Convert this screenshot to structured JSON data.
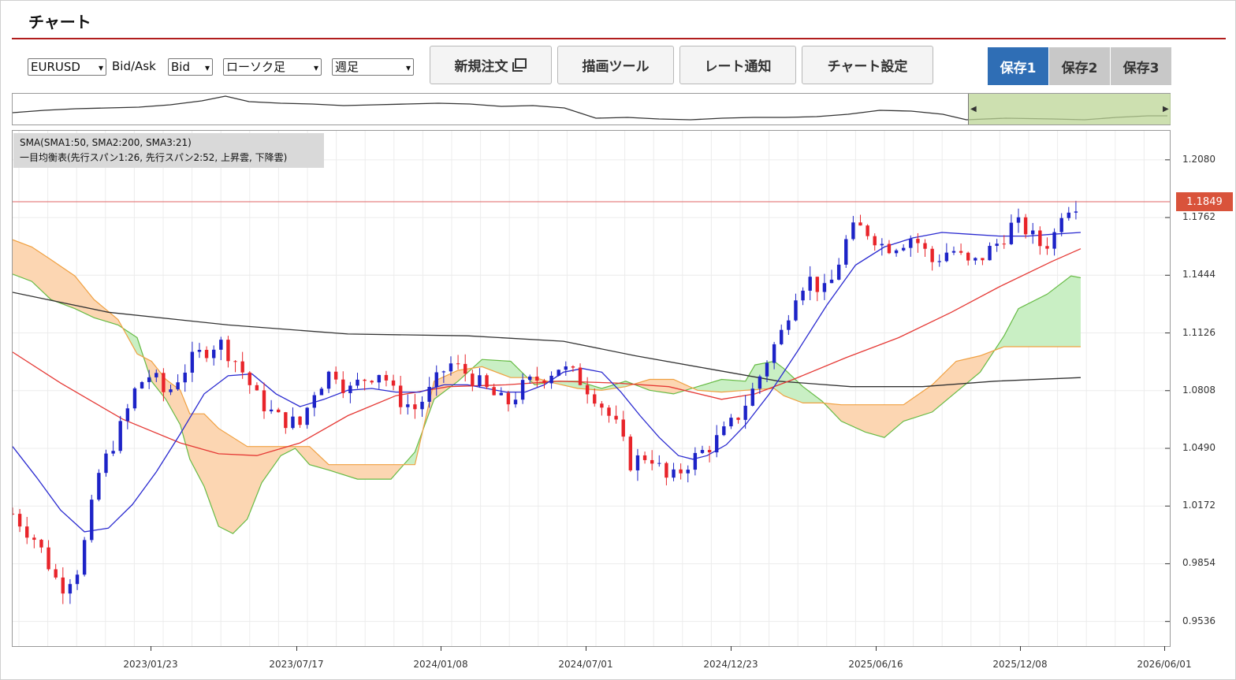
{
  "title": "チャート",
  "toolbar": {
    "pair": "EURUSD",
    "bidask_label": "Bid/Ask",
    "bidask_value": "Bid",
    "chart_type": "ローソク足",
    "period": "週足",
    "new_order_label": "新規注文",
    "draw_tool_label": "描画ツール",
    "rate_alert_label": "レート通知",
    "chart_settings_label": "チャート設定",
    "save_tabs": [
      "保存1",
      "保存2",
      "保存3"
    ],
    "save_active": 0
  },
  "legend": {
    "line1": "SMA(SMA1:50, SMA2:200, SMA3:21)",
    "line2": "一目均衡表(先行スパン1:26, 先行スパン2:52, 上昇雲, 下降雲)"
  },
  "colors": {
    "up_candle": "#1d23c7",
    "down_candle": "#e8242a",
    "sma1": "#e53935",
    "sma2": "#333333",
    "sma3": "#2a2ad0",
    "cloud_up": "#c9efc4",
    "cloud_down": "#fcd6b2",
    "span1": "#66bb44",
    "span2": "#f0a040",
    "active_tab": "#2f6eb5",
    "current_price": "#d9533b"
  },
  "chart_data": {
    "type": "candlestick",
    "instrument": "EURUSD",
    "timeframe": "週足",
    "current_price": "1.1849",
    "y_ticks": [
      "1.2080",
      "1.1762",
      "1.1444",
      "1.1126",
      "1.0808",
      "1.0490",
      "1.0172",
      "0.9854",
      "0.9536"
    ],
    "x_ticks": [
      "2023/01/23",
      "2023/07/17",
      "2024/01/08",
      "2024/07/01",
      "2024/12/23",
      "2025/06/16",
      "2025/12/08",
      "2026/06/01"
    ],
    "ylim": [
      0.94,
      1.224
    ],
    "close_path": [
      [
        0,
        1.013
      ],
      [
        10,
        0.998
      ],
      [
        20,
        0.972
      ],
      [
        28,
        0.984
      ],
      [
        36,
        1.035
      ],
      [
        46,
        1.063
      ],
      [
        52,
        1.084
      ],
      [
        58,
        1.09
      ],
      [
        64,
        1.078
      ],
      [
        70,
        1.09
      ],
      [
        76,
        1.099
      ],
      [
        86,
        1.108
      ],
      [
        94,
        1.096
      ],
      [
        102,
        1.077
      ],
      [
        110,
        1.066
      ],
      [
        120,
        1.062
      ],
      [
        126,
        1.081
      ],
      [
        134,
        1.093
      ],
      [
        140,
        1.08
      ],
      [
        146,
        1.087
      ],
      [
        154,
        1.092
      ],
      [
        160,
        1.077
      ],
      [
        168,
        1.071
      ],
      [
        174,
        1.08
      ],
      [
        182,
        1.096
      ],
      [
        190,
        1.09
      ],
      [
        198,
        1.081
      ],
      [
        206,
        1.073
      ],
      [
        214,
        1.084
      ],
      [
        222,
        1.089
      ],
      [
        228,
        1.094
      ],
      [
        236,
        1.088
      ],
      [
        244,
        1.077
      ],
      [
        252,
        1.061
      ],
      [
        258,
        1.041
      ],
      [
        266,
        1.046
      ],
      [
        274,
        1.03
      ],
      [
        282,
        1.041
      ],
      [
        288,
        1.047
      ],
      [
        296,
        1.056
      ],
      [
        302,
        1.065
      ],
      [
        310,
        1.083
      ],
      [
        316,
        1.101
      ],
      [
        322,
        1.115
      ],
      [
        326,
        1.134
      ],
      [
        332,
        1.143
      ],
      [
        340,
        1.134
      ],
      [
        348,
        1.163
      ],
      [
        352,
        1.171
      ],
      [
        358,
        1.168
      ],
      [
        364,
        1.16
      ],
      [
        370,
        1.162
      ],
      [
        376,
        1.166
      ],
      [
        384,
        1.152
      ],
      [
        392,
        1.159
      ],
      [
        400,
        1.149
      ],
      [
        406,
        1.156
      ],
      [
        412,
        1.163
      ],
      [
        418,
        1.173
      ],
      [
        424,
        1.169
      ],
      [
        428,
        1.161
      ],
      [
        434,
        1.163
      ],
      [
        438,
        1.18
      ],
      [
        442,
        1.184
      ],
      [
        446,
        1.185
      ]
    ],
    "sma1_points": [
      [
        0,
        1.102
      ],
      [
        20,
        1.085
      ],
      [
        46,
        1.065
      ],
      [
        70,
        1.052
      ],
      [
        86,
        1.046
      ],
      [
        102,
        1.045
      ],
      [
        120,
        1.052
      ],
      [
        140,
        1.067
      ],
      [
        160,
        1.078
      ],
      [
        182,
        1.083
      ],
      [
        206,
        1.084
      ],
      [
        228,
        1.086
      ],
      [
        252,
        1.085
      ],
      [
        274,
        1.083
      ],
      [
        296,
        1.076
      ],
      [
        310,
        1.079
      ],
      [
        326,
        1.087
      ],
      [
        348,
        1.099
      ],
      [
        370,
        1.11
      ],
      [
        392,
        1.124
      ],
      [
        412,
        1.138
      ],
      [
        434,
        1.152
      ],
      [
        446,
        1.159
      ]
    ],
    "sma2_points": [
      [
        0,
        1.135
      ],
      [
        40,
        1.124
      ],
      [
        90,
        1.117
      ],
      [
        140,
        1.112
      ],
      [
        190,
        1.111
      ],
      [
        230,
        1.108
      ],
      [
        260,
        1.1
      ],
      [
        290,
        1.093
      ],
      [
        320,
        1.086
      ],
      [
        350,
        1.083
      ],
      [
        380,
        1.083
      ],
      [
        410,
        1.086
      ],
      [
        446,
        1.088
      ]
    ],
    "sma3_points": [
      [
        0,
        1.05
      ],
      [
        10,
        1.033
      ],
      [
        20,
        1.015
      ],
      [
        30,
        1.003
      ],
      [
        40,
        1.005
      ],
      [
        50,
        1.018
      ],
      [
        60,
        1.036
      ],
      [
        70,
        1.057
      ],
      [
        80,
        1.079
      ],
      [
        90,
        1.089
      ],
      [
        100,
        1.09
      ],
      [
        110,
        1.079
      ],
      [
        120,
        1.072
      ],
      [
        130,
        1.076
      ],
      [
        140,
        1.081
      ],
      [
        150,
        1.082
      ],
      [
        160,
        1.08
      ],
      [
        170,
        1.08
      ],
      [
        180,
        1.084
      ],
      [
        190,
        1.084
      ],
      [
        198,
        1.082
      ],
      [
        206,
        1.08
      ],
      [
        214,
        1.08
      ],
      [
        222,
        1.084
      ],
      [
        230,
        1.091
      ],
      [
        238,
        1.093
      ],
      [
        246,
        1.091
      ],
      [
        254,
        1.08
      ],
      [
        262,
        1.067
      ],
      [
        270,
        1.055
      ],
      [
        278,
        1.045
      ],
      [
        284,
        1.043
      ],
      [
        290,
        1.045
      ],
      [
        298,
        1.051
      ],
      [
        306,
        1.062
      ],
      [
        316,
        1.079
      ],
      [
        328,
        1.103
      ],
      [
        340,
        1.128
      ],
      [
        352,
        1.15
      ],
      [
        364,
        1.16
      ],
      [
        376,
        1.165
      ],
      [
        388,
        1.168
      ],
      [
        400,
        1.167
      ],
      [
        412,
        1.166
      ],
      [
        424,
        1.166
      ],
      [
        434,
        1.167
      ],
      [
        446,
        1.168
      ]
    ],
    "span1_points": [
      [
        0,
        1.145
      ],
      [
        8,
        1.141
      ],
      [
        16,
        1.131
      ],
      [
        26,
        1.126
      ],
      [
        34,
        1.121
      ],
      [
        44,
        1.117
      ],
      [
        52,
        1.11
      ],
      [
        58,
        1.086
      ],
      [
        64,
        1.076
      ],
      [
        70,
        1.062
      ],
      [
        74,
        1.043
      ],
      [
        80,
        1.028
      ],
      [
        86,
        1.006
      ],
      [
        92,
        1.002
      ],
      [
        98,
        1.01
      ],
      [
        104,
        1.03
      ],
      [
        112,
        1.045
      ],
      [
        118,
        1.049
      ],
      [
        124,
        1.04
      ],
      [
        132,
        1.037
      ],
      [
        144,
        1.032
      ],
      [
        158,
        1.032
      ],
      [
        168,
        1.047
      ],
      [
        176,
        1.076
      ],
      [
        186,
        1.086
      ],
      [
        196,
        1.098
      ],
      [
        208,
        1.097
      ],
      [
        218,
        1.084
      ],
      [
        226,
        1.086
      ],
      [
        236,
        1.086
      ],
      [
        246,
        1.082
      ],
      [
        256,
        1.086
      ],
      [
        266,
        1.081
      ],
      [
        276,
        1.079
      ],
      [
        286,
        1.083
      ],
      [
        296,
        1.087
      ],
      [
        306,
        1.086
      ],
      [
        310,
        1.095
      ],
      [
        318,
        1.097
      ],
      [
        322,
        1.093
      ],
      [
        330,
        1.083
      ],
      [
        338,
        1.075
      ],
      [
        346,
        1.064
      ],
      [
        356,
        1.058
      ],
      [
        364,
        1.055
      ],
      [
        372,
        1.064
      ],
      [
        384,
        1.069
      ],
      [
        394,
        1.08
      ],
      [
        404,
        1.091
      ],
      [
        414,
        1.111
      ],
      [
        420,
        1.126
      ],
      [
        432,
        1.134
      ],
      [
        442,
        1.144
      ],
      [
        446,
        1.143
      ]
    ],
    "span2_points": [
      [
        0,
        1.164
      ],
      [
        8,
        1.16
      ],
      [
        16,
        1.153
      ],
      [
        26,
        1.144
      ],
      [
        34,
        1.131
      ],
      [
        44,
        1.12
      ],
      [
        52,
        1.101
      ],
      [
        58,
        1.097
      ],
      [
        64,
        1.087
      ],
      [
        70,
        1.081
      ],
      [
        74,
        1.068
      ],
      [
        80,
        1.068
      ],
      [
        86,
        1.06
      ],
      [
        98,
        1.05
      ],
      [
        104,
        1.05
      ],
      [
        112,
        1.05
      ],
      [
        118,
        1.05
      ],
      [
        124,
        1.05
      ],
      [
        132,
        1.04
      ],
      [
        144,
        1.04
      ],
      [
        158,
        1.04
      ],
      [
        168,
        1.04
      ],
      [
        176,
        1.086
      ],
      [
        186,
        1.092
      ],
      [
        196,
        1.094
      ],
      [
        208,
        1.088
      ],
      [
        218,
        1.088
      ],
      [
        226,
        1.085
      ],
      [
        236,
        1.082
      ],
      [
        246,
        1.081
      ],
      [
        256,
        1.083
      ],
      [
        266,
        1.087
      ],
      [
        276,
        1.087
      ],
      [
        286,
        1.081
      ],
      [
        296,
        1.08
      ],
      [
        306,
        1.081
      ],
      [
        318,
        1.082
      ],
      [
        322,
        1.078
      ],
      [
        330,
        1.074
      ],
      [
        338,
        1.074
      ],
      [
        346,
        1.073
      ],
      [
        356,
        1.073
      ],
      [
        364,
        1.073
      ],
      [
        372,
        1.073
      ],
      [
        384,
        1.084
      ],
      [
        394,
        1.097
      ],
      [
        404,
        1.1
      ],
      [
        414,
        1.105
      ],
      [
        432,
        1.105
      ],
      [
        446,
        1.105
      ]
    ]
  }
}
